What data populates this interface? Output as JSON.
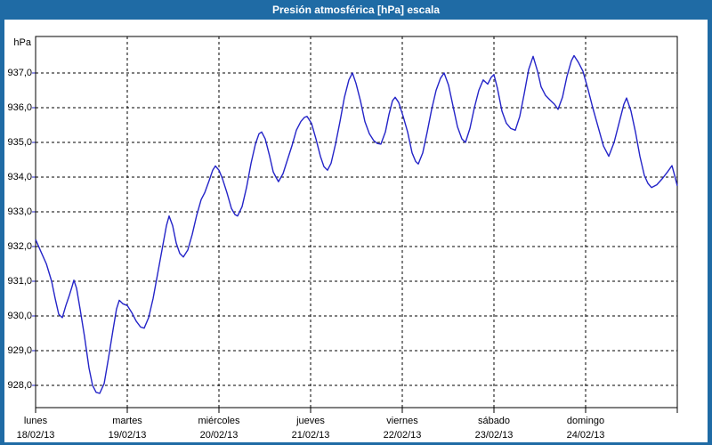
{
  "window": {
    "title": "Presión atmosférica [hPa] escala"
  },
  "colors": {
    "frame_blue": "#1f6ba5",
    "series_blue": "#2424c8",
    "grid_black": "#000000",
    "panel_white": "#ffffff",
    "title_text": "#ffffff"
  },
  "y_axis": {
    "unit_label": "hPa",
    "ticks": [
      {
        "value": 937,
        "label": "937,0"
      },
      {
        "value": 936,
        "label": "936,0"
      },
      {
        "value": 935,
        "label": "935,0"
      },
      {
        "value": 934,
        "label": "934,0"
      },
      {
        "value": 933,
        "label": "933,0"
      },
      {
        "value": 932,
        "label": "932,0"
      },
      {
        "value": 931,
        "label": "931,0"
      },
      {
        "value": 930,
        "label": "930,0"
      },
      {
        "value": 929,
        "label": "929,0"
      },
      {
        "value": 928,
        "label": "928,0"
      }
    ]
  },
  "x_axis": {
    "days": [
      {
        "name": "lunes",
        "date": "18/02/13"
      },
      {
        "name": "martes",
        "date": "19/02/13"
      },
      {
        "name": "miércoles",
        "date": "20/02/13"
      },
      {
        "name": "jueves",
        "date": "21/02/13"
      },
      {
        "name": "viernes",
        "date": "22/02/13"
      },
      {
        "name": "sábado",
        "date": "23/02/13"
      },
      {
        "name": "domingo",
        "date": "24/02/13"
      }
    ]
  },
  "chart_data": {
    "type": "line",
    "title": "Presión atmosférica [hPa] escala",
    "ylabel": "hPa",
    "x_axis_days": [
      "lunes 18/02/13",
      "martes 19/02/13",
      "miércoles 20/02/13",
      "jueves 21/02/13",
      "viernes 22/02/13",
      "sábado 23/02/13",
      "domingo 24/02/13"
    ],
    "x_range_days": [
      0,
      7
    ],
    "ylim": [
      927.35,
      938.05
    ],
    "y_ticks": [
      928,
      929,
      930,
      931,
      932,
      933,
      934,
      935,
      936,
      937
    ],
    "grid": "dashed",
    "legend": "none",
    "series": [
      {
        "name": "Presión atmosférica [hPa]",
        "color": "#2424c8",
        "x_unit": "days since 18/02/13 00:00",
        "y_unit": "hPa",
        "points_day_hpa": [
          [
            0.0,
            932.2
          ],
          [
            0.058,
            931.85
          ],
          [
            0.117,
            931.5
          ],
          [
            0.175,
            931.0
          ],
          [
            0.214,
            930.5
          ],
          [
            0.252,
            930.05
          ],
          [
            0.291,
            929.95
          ],
          [
            0.33,
            930.3
          ],
          [
            0.369,
            930.6
          ],
          [
            0.398,
            930.85
          ],
          [
            0.417,
            931.03
          ],
          [
            0.447,
            930.8
          ],
          [
            0.485,
            930.2
          ],
          [
            0.534,
            929.4
          ],
          [
            0.583,
            928.5
          ],
          [
            0.621,
            928.0
          ],
          [
            0.66,
            927.8
          ],
          [
            0.699,
            927.77
          ],
          [
            0.748,
            928.05
          ],
          [
            0.796,
            928.8
          ],
          [
            0.845,
            929.6
          ],
          [
            0.883,
            930.2
          ],
          [
            0.913,
            930.45
          ],
          [
            0.951,
            930.35
          ],
          [
            1.0,
            930.3
          ],
          [
            1.049,
            930.1
          ],
          [
            1.097,
            929.85
          ],
          [
            1.146,
            929.68
          ],
          [
            1.184,
            929.65
          ],
          [
            1.233,
            929.95
          ],
          [
            1.282,
            930.5
          ],
          [
            1.33,
            931.2
          ],
          [
            1.379,
            931.9
          ],
          [
            1.427,
            932.6
          ],
          [
            1.456,
            932.88
          ],
          [
            1.495,
            932.6
          ],
          [
            1.534,
            932.1
          ],
          [
            1.573,
            931.8
          ],
          [
            1.612,
            931.7
          ],
          [
            1.66,
            931.9
          ],
          [
            1.709,
            932.35
          ],
          [
            1.757,
            932.9
          ],
          [
            1.806,
            933.35
          ],
          [
            1.845,
            933.55
          ],
          [
            1.893,
            933.9
          ],
          [
            1.932,
            934.2
          ],
          [
            1.961,
            934.32
          ],
          [
            2.0,
            934.2
          ],
          [
            2.039,
            933.95
          ],
          [
            2.087,
            933.55
          ],
          [
            2.136,
            933.1
          ],
          [
            2.175,
            932.92
          ],
          [
            2.204,
            932.88
          ],
          [
            2.252,
            933.15
          ],
          [
            2.301,
            933.7
          ],
          [
            2.35,
            934.4
          ],
          [
            2.398,
            934.95
          ],
          [
            2.437,
            935.25
          ],
          [
            2.466,
            935.3
          ],
          [
            2.505,
            935.1
          ],
          [
            2.553,
            934.6
          ],
          [
            2.592,
            934.15
          ],
          [
            2.621,
            934.0
          ],
          [
            2.65,
            933.87
          ],
          [
            2.699,
            934.1
          ],
          [
            2.748,
            934.5
          ],
          [
            2.796,
            934.9
          ],
          [
            2.845,
            935.35
          ],
          [
            2.893,
            935.6
          ],
          [
            2.932,
            935.72
          ],
          [
            2.961,
            935.75
          ],
          [
            3.01,
            935.55
          ],
          [
            3.058,
            935.1
          ],
          [
            3.107,
            934.6
          ],
          [
            3.146,
            934.3
          ],
          [
            3.184,
            934.2
          ],
          [
            3.223,
            934.4
          ],
          [
            3.272,
            934.95
          ],
          [
            3.32,
            935.6
          ],
          [
            3.369,
            936.3
          ],
          [
            3.417,
            936.8
          ],
          [
            3.456,
            937.0
          ],
          [
            3.495,
            936.7
          ],
          [
            3.544,
            936.2
          ],
          [
            3.592,
            935.6
          ],
          [
            3.641,
            935.25
          ],
          [
            3.689,
            935.05
          ],
          [
            3.728,
            934.97
          ],
          [
            3.767,
            934.95
          ],
          [
            3.816,
            935.3
          ],
          [
            3.854,
            935.8
          ],
          [
            3.893,
            936.2
          ],
          [
            3.922,
            936.3
          ],
          [
            3.961,
            936.15
          ],
          [
            4.01,
            935.75
          ],
          [
            4.058,
            935.3
          ],
          [
            4.107,
            934.7
          ],
          [
            4.146,
            934.45
          ],
          [
            4.175,
            934.38
          ],
          [
            4.223,
            934.7
          ],
          [
            4.272,
            935.3
          ],
          [
            4.32,
            935.95
          ],
          [
            4.369,
            936.5
          ],
          [
            4.417,
            936.85
          ],
          [
            4.456,
            937.0
          ],
          [
            4.505,
            936.65
          ],
          [
            4.553,
            936.05
          ],
          [
            4.602,
            935.45
          ],
          [
            4.65,
            935.1
          ],
          [
            4.689,
            935.0
          ],
          [
            4.738,
            935.4
          ],
          [
            4.786,
            936.0
          ],
          [
            4.835,
            936.5
          ],
          [
            4.883,
            936.8
          ],
          [
            4.932,
            936.68
          ],
          [
            4.971,
            936.88
          ],
          [
            5.0,
            936.95
          ],
          [
            5.039,
            936.55
          ],
          [
            5.087,
            935.9
          ],
          [
            5.136,
            935.55
          ],
          [
            5.184,
            935.4
          ],
          [
            5.233,
            935.35
          ],
          [
            5.282,
            935.75
          ],
          [
            5.33,
            936.4
          ],
          [
            5.379,
            937.1
          ],
          [
            5.427,
            937.48
          ],
          [
            5.476,
            937.05
          ],
          [
            5.515,
            936.6
          ],
          [
            5.563,
            936.35
          ],
          [
            5.612,
            936.22
          ],
          [
            5.66,
            936.1
          ],
          [
            5.699,
            935.95
          ],
          [
            5.748,
            936.3
          ],
          [
            5.796,
            936.9
          ],
          [
            5.845,
            937.35
          ],
          [
            5.874,
            937.5
          ],
          [
            5.922,
            937.3
          ],
          [
            5.971,
            937.05
          ],
          [
            6.029,
            936.5
          ],
          [
            6.078,
            936.0
          ],
          [
            6.136,
            935.45
          ],
          [
            6.194,
            934.9
          ],
          [
            6.252,
            934.6
          ],
          [
            6.311,
            935.0
          ],
          [
            6.369,
            935.6
          ],
          [
            6.417,
            936.1
          ],
          [
            6.447,
            936.28
          ],
          [
            6.495,
            935.9
          ],
          [
            6.544,
            935.3
          ],
          [
            6.592,
            934.6
          ],
          [
            6.641,
            934.05
          ],
          [
            6.68,
            933.82
          ],
          [
            6.718,
            933.7
          ],
          [
            6.777,
            933.78
          ],
          [
            6.835,
            933.95
          ],
          [
            6.893,
            934.15
          ],
          [
            6.942,
            934.33
          ],
          [
            6.971,
            934.05
          ],
          [
            7.0,
            933.75
          ]
        ]
      }
    ]
  }
}
